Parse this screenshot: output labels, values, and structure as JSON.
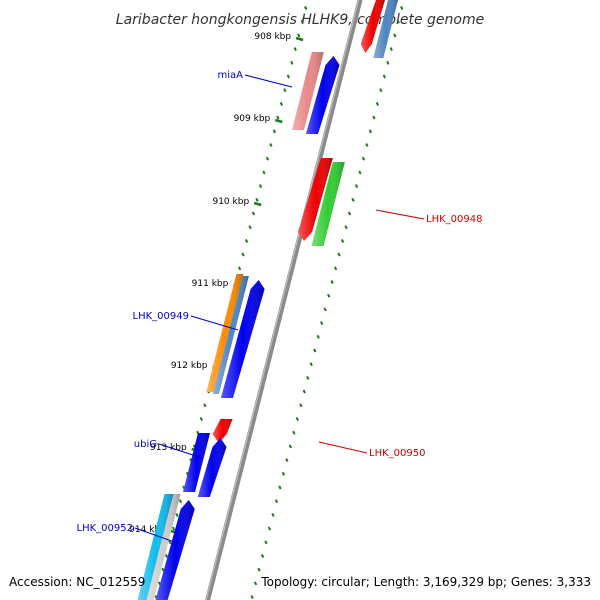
{
  "title": "Laribacter hongkongensis HLHK9, complete genome",
  "accession": "Accession: NC_012559",
  "stats": "Topology: circular; Length: 3,169,329 bp; Genes: 3,333",
  "colors": {
    "backbone": "#8a8a8a",
    "tick": "#1a7a1a",
    "forward_label": "#0000cc",
    "reverse_label": "#cc0000",
    "blue": "#0000ee",
    "red": "#ee0000",
    "pink": "#e88888",
    "steelblue": "#4f86c0",
    "green": "#33cc33",
    "orange": "#ff8c00",
    "cyan": "#11bbee",
    "grey": "#cccccc"
  },
  "ticks": [
    "908 kbp",
    "909 kbp",
    "910 kbp",
    "911 kbp",
    "912 kbp",
    "913 kbp",
    "914 kbp"
  ],
  "genes": [
    {
      "label": "",
      "strand": "reverse",
      "color": "red"
    },
    {
      "label": "",
      "strand": "reverse",
      "color": "steelblue"
    },
    {
      "label": "miaA",
      "strand": "forward",
      "color": "pink"
    },
    {
      "label": "",
      "strand": "forward",
      "color": "blue"
    },
    {
      "label": "LHK_00948",
      "strand": "reverse",
      "color": "red"
    },
    {
      "label": "",
      "strand": "reverse",
      "color": "green"
    },
    {
      "label": "LHK_00949",
      "strand": "forward",
      "color": "orange"
    },
    {
      "label": "",
      "strand": "forward",
      "color": "steelblue"
    },
    {
      "label": "",
      "strand": "forward",
      "color": "blue"
    },
    {
      "label": "LHK_00950",
      "strand": "reverse",
      "color": "red"
    },
    {
      "label": "ubiG",
      "strand": "forward",
      "color": "blue"
    },
    {
      "label": "",
      "strand": "forward",
      "color": "blue"
    },
    {
      "label": "LHK_00952",
      "strand": "forward",
      "color": "cyan"
    },
    {
      "label": "",
      "strand": "forward",
      "color": "grey"
    },
    {
      "label": "",
      "strand": "forward",
      "color": "blue"
    }
  ]
}
